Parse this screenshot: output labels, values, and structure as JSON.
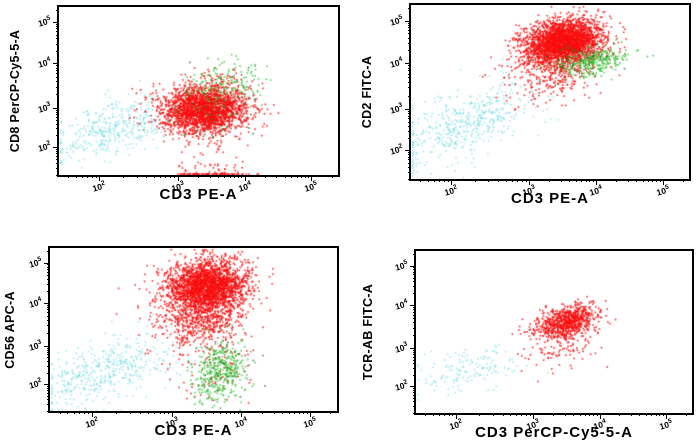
{
  "page": {
    "background": "#ffffff"
  },
  "colors": {
    "red": "#f90d0d",
    "green": "#3cc43c",
    "darkgreen": "#1a7d1a",
    "cyan": "#66d9e4",
    "axis": "#000000",
    "frame": "#000000"
  },
  "scale_anchors": {
    "x": [
      [
        2,
        14.5
      ],
      [
        3,
        42.5
      ],
      [
        4,
        66.5
      ],
      [
        5,
        90.5
      ]
    ],
    "y": [
      [
        2,
        16.5
      ],
      [
        3,
        40.0
      ],
      [
        4,
        66.5
      ],
      [
        5,
        91.0
      ]
    ]
  },
  "dot": {
    "size": 1.6,
    "cyan_size": 1.4,
    "alpha": 0.85
  },
  "chart_data": [
    {
      "type": "scatter",
      "panel": "top-left",
      "xlabel": "CD3 PE-A",
      "ylabel": "CD8 PerCP-Cy5-5-A",
      "x_scale": "biexponential-log",
      "y_scale": "biexponential-log",
      "x_tick_exponents": [
        2,
        3,
        4,
        5
      ],
      "y_tick_exponents": [
        2,
        3,
        4,
        5
      ],
      "grid": false,
      "legend": "none",
      "populations": [
        {
          "color_key": "cyan",
          "n": 420,
          "center_log10": [
            2.15,
            2.45
          ],
          "sd_log10": [
            0.42,
            0.38
          ],
          "corr": 0.5
        },
        {
          "color_key": "red",
          "n": 2400,
          "center_log10": [
            3.4,
            2.95
          ],
          "sd_log10": [
            0.32,
            0.31
          ],
          "corr": 0.05
        },
        {
          "color_key": "red",
          "n": 130,
          "center_log10": [
            3.55,
            1.15
          ],
          "sd_log10": [
            0.28,
            0.28
          ],
          "corr": 0
        },
        {
          "color_key": "green",
          "n": 160,
          "center_log10": [
            3.7,
            3.55
          ],
          "sd_log10": [
            0.3,
            0.28
          ],
          "corr": 0.2
        },
        {
          "color_key": "darkgreen",
          "n": 50,
          "center_log10": [
            3.5,
            2.8
          ],
          "sd_log10": [
            0.35,
            0.45
          ],
          "corr": 0
        }
      ]
    },
    {
      "type": "scatter",
      "panel": "top-right",
      "xlabel": "CD3 PE-A",
      "ylabel": "CD2 FITC-A",
      "x_scale": "biexponential-log",
      "y_scale": "biexponential-log",
      "x_tick_exponents": [
        2,
        3,
        4,
        5
      ],
      "y_tick_exponents": [
        2,
        3,
        4,
        5
      ],
      "grid": false,
      "legend": "none",
      "populations": [
        {
          "color_key": "cyan",
          "n": 500,
          "center_log10": [
            2.2,
            2.7
          ],
          "sd_log10": [
            0.45,
            0.5
          ],
          "corr": 0.6
        },
        {
          "color_key": "red",
          "n": 2800,
          "center_log10": [
            3.5,
            4.5
          ],
          "sd_log10": [
            0.3,
            0.27
          ],
          "corr": 0.25
        },
        {
          "color_key": "red",
          "n": 260,
          "center_log10": [
            3.35,
            3.75
          ],
          "sd_log10": [
            0.35,
            0.3
          ],
          "corr": 0.2
        },
        {
          "color_key": "green",
          "n": 280,
          "center_log10": [
            3.95,
            4.05
          ],
          "sd_log10": [
            0.24,
            0.16
          ],
          "corr": 0.35
        },
        {
          "color_key": "darkgreen",
          "n": 60,
          "center_log10": [
            3.8,
            4.1
          ],
          "sd_log10": [
            0.3,
            0.2
          ],
          "corr": 0.2
        }
      ]
    },
    {
      "type": "scatter",
      "panel": "bottom-left",
      "xlabel": "CD3 PE-A",
      "ylabel": "CD56 APC-A",
      "x_scale": "biexponential-log",
      "y_scale": "biexponential-log",
      "x_tick_exponents": [
        2,
        3,
        4,
        5
      ],
      "y_tick_exponents": [
        2,
        3,
        4,
        5
      ],
      "grid": false,
      "legend": "none",
      "populations": [
        {
          "color_key": "cyan",
          "n": 460,
          "center_log10": [
            2.15,
            2.35
          ],
          "sd_log10": [
            0.45,
            0.45
          ],
          "corr": 0.5
        },
        {
          "color_key": "red",
          "n": 2500,
          "center_log10": [
            3.5,
            4.4
          ],
          "sd_log10": [
            0.3,
            0.33
          ],
          "corr": 0.1
        },
        {
          "color_key": "red",
          "n": 500,
          "center_log10": [
            3.4,
            3.55
          ],
          "sd_log10": [
            0.32,
            0.3
          ],
          "corr": 0.1
        },
        {
          "color_key": "red",
          "n": 80,
          "center_log10": [
            3.6,
            2.4
          ],
          "sd_log10": [
            0.3,
            0.4
          ],
          "corr": 0
        },
        {
          "color_key": "green",
          "n": 360,
          "center_log10": [
            3.7,
            2.3
          ],
          "sd_log10": [
            0.2,
            0.42
          ],
          "corr": 0
        },
        {
          "color_key": "darkgreen",
          "n": 50,
          "center_log10": [
            3.65,
            2.4
          ],
          "sd_log10": [
            0.25,
            0.45
          ],
          "corr": 0
        }
      ]
    },
    {
      "type": "scatter",
      "panel": "bottom-right",
      "xlabel": "CD3 PerCP-Cy5-5-A",
      "ylabel": "TCR-AB FITC-A",
      "x_scale": "biexponential-log",
      "y_scale": "biexponential-log",
      "x_tick_exponents": [
        2,
        3,
        4,
        5
      ],
      "y_tick_exponents": [
        2,
        3,
        4,
        5
      ],
      "grid": false,
      "legend": "none",
      "populations": [
        {
          "color_key": "cyan",
          "n": 150,
          "center_log10": [
            2.15,
            2.45
          ],
          "sd_log10": [
            0.4,
            0.35
          ],
          "corr": 0.55
        },
        {
          "color_key": "red",
          "n": 820,
          "center_log10": [
            3.5,
            3.62
          ],
          "sd_log10": [
            0.23,
            0.2
          ],
          "corr": 0.35
        },
        {
          "color_key": "red",
          "n": 90,
          "center_log10": [
            3.4,
            2.95
          ],
          "sd_log10": [
            0.28,
            0.3
          ],
          "corr": 0.1
        }
      ]
    }
  ]
}
